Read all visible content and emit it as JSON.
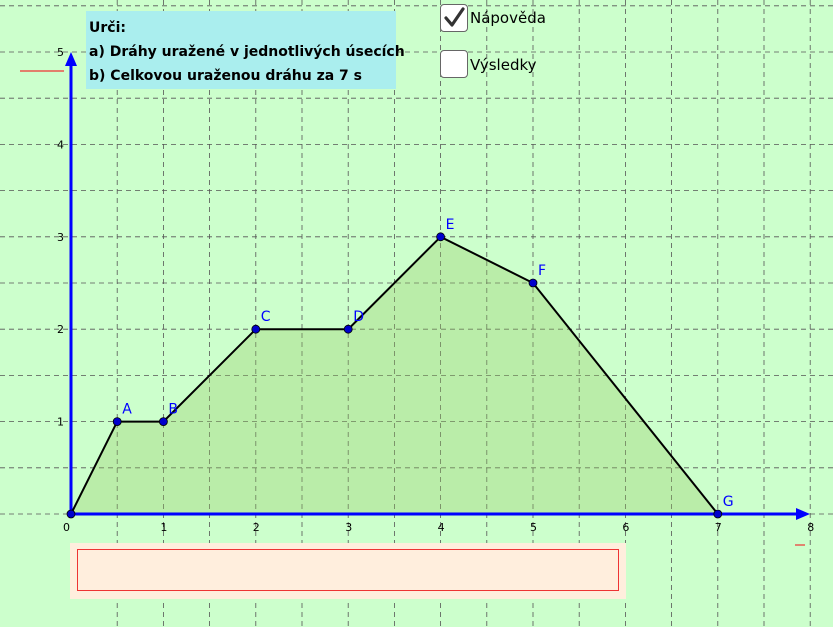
{
  "task": {
    "title": "Urči:",
    "line_a": "a) Dráhy uražené v jednotlivých úsecích",
    "line_b": "b) Celkovou uraženou dráhu za 7 s"
  },
  "checkboxes": [
    {
      "label": "Nápověda",
      "checked": true
    },
    {
      "label": "Výsledky",
      "checked": false
    }
  ],
  "answer_box": {
    "text": ""
  },
  "colors": {
    "background": "#ccffcc",
    "axis": "#0000ff",
    "polyline": "#000000",
    "fill": "#99cc66",
    "point": "#0000cc",
    "label": "#0000ff",
    "grid": "#555555",
    "task_box": "#aaeeee",
    "answer_box_border": "#ee3333",
    "answer_box_bg": "#ffeedd"
  },
  "chart_data": {
    "type": "line",
    "xlim": [
      0,
      8
    ],
    "ylim": [
      0,
      5
    ],
    "x_ticks": [
      0,
      1,
      2,
      3,
      4,
      5,
      6,
      7,
      8
    ],
    "y_ticks": [
      1,
      2,
      3,
      4,
      5
    ],
    "x_tick_labels": [
      "0",
      "1",
      "2",
      "3",
      "4",
      "5",
      "6",
      "7",
      "8"
    ],
    "y_tick_labels": [
      "1",
      "2",
      "3",
      "4",
      "5"
    ],
    "grid": true,
    "grid_style": "dashed",
    "minor_grid_step": 0.5,
    "filled_area": true,
    "points": [
      {
        "label": "",
        "x": 0,
        "y": 0
      },
      {
        "label": "A",
        "x": 0.5,
        "y": 1
      },
      {
        "label": "B",
        "x": 1,
        "y": 1
      },
      {
        "label": "C",
        "x": 2,
        "y": 2
      },
      {
        "label": "D",
        "x": 3,
        "y": 2
      },
      {
        "label": "E",
        "x": 4,
        "y": 3
      },
      {
        "label": "F",
        "x": 5,
        "y": 2.5
      },
      {
        "label": "G",
        "x": 7,
        "y": 0
      }
    ]
  }
}
